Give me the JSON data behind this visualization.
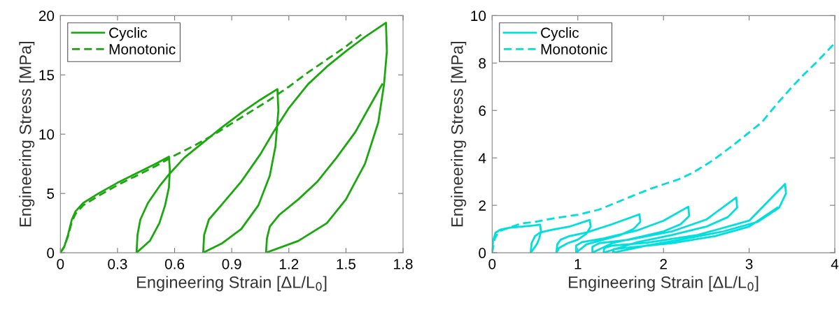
{
  "chart_data": [
    {
      "type": "line",
      "xlabel": "Engineering Strain [ΔL/L$_{0}$]",
      "ylabel": "Engineering Stress [MPa]",
      "xlim": [
        0,
        1.8
      ],
      "ylim": [
        0,
        20
      ],
      "xticks": [
        0,
        0.3,
        0.6,
        0.9,
        1.2,
        1.5,
        1.8
      ],
      "yticks": [
        0,
        5,
        10,
        15,
        20
      ],
      "legend": "top left",
      "grid": false,
      "series": [
        {
          "name": "Cyclic",
          "color": "#1aa80e",
          "line_style": "solid",
          "x": [
            0,
            0.02,
            0.04,
            0.06,
            0.08,
            0.12,
            0.2,
            0.3,
            0.4,
            0.5,
            0.57,
            0.575,
            0.57,
            0.55,
            0.52,
            0.47,
            0.4,
            0.405,
            0.42,
            0.46,
            0.52,
            0.57,
            0.65,
            0.75,
            0.85,
            0.95,
            1.05,
            1.14,
            1.145,
            1.13,
            1.1,
            1.04,
            0.95,
            0.85,
            0.75,
            0.755,
            0.78,
            0.85,
            0.95,
            1.05,
            1.12,
            1.2,
            1.3,
            1.4,
            1.5,
            1.6,
            1.71,
            1.715,
            1.7,
            1.67,
            1.6,
            1.5,
            1.4,
            1.25,
            1.08,
            1.085,
            1.1,
            1.15,
            1.25,
            1.35,
            1.45,
            1.55,
            1.63,
            1.69
          ],
          "values": [
            0,
            0.5,
            1.5,
            2.8,
            3.5,
            4.2,
            5.0,
            5.9,
            6.7,
            7.5,
            8.1,
            7,
            5.5,
            4,
            2.5,
            1,
            0,
            1.5,
            2.8,
            4.2,
            5.6,
            6.6,
            8.0,
            9.3,
            10.6,
            11.8,
            12.9,
            13.8,
            12,
            9,
            6.5,
            4,
            2,
            0.8,
            0,
            1.5,
            2.8,
            4.1,
            6,
            8.3,
            10.2,
            12.2,
            14.2,
            15.7,
            17.0,
            18.2,
            19.4,
            17,
            14.2,
            11,
            7.5,
            4.5,
            2.5,
            1.0,
            0,
            1.2,
            2.2,
            3.2,
            4.5,
            6.0,
            8,
            10.2,
            12.5,
            14.2
          ]
        },
        {
          "name": "Monotonic",
          "color": "#1aa80e",
          "line_style": "dashed",
          "x": [
            0,
            0.02,
            0.04,
            0.06,
            0.08,
            0.12,
            0.2,
            0.3,
            0.4,
            0.5,
            0.6,
            0.7,
            0.8,
            0.9,
            1.0,
            1.1,
            1.2,
            1.3,
            1.4,
            1.5,
            1.58
          ],
          "values": [
            0,
            0.5,
            1.4,
            2.6,
            3.3,
            4.0,
            4.8,
            5.7,
            6.5,
            7.3,
            8.2,
            9.0,
            9.9,
            10.9,
            11.9,
            12.9,
            14.0,
            15.2,
            16.3,
            17.4,
            18.4
          ]
        }
      ]
    },
    {
      "type": "line",
      "xlabel": "Engineering Strain [ΔL/L$_{0}$]",
      "ylabel": "Engineering Stress [MPa]",
      "xlim": [
        0,
        4
      ],
      "ylim": [
        0,
        10
      ],
      "xticks": [
        0,
        1,
        2,
        3,
        4
      ],
      "yticks": [
        0,
        2,
        4,
        6,
        8,
        10
      ],
      "legend": "top left",
      "grid": false,
      "series": [
        {
          "name": "Cyclic",
          "color": "#00dede",
          "line_style": "solid",
          "x": [
            0,
            0.01,
            0.04,
            0.1,
            0.2,
            0.35,
            0.56,
            0.57,
            0.55,
            0.52,
            0.45,
            0.46,
            0.5,
            0.56,
            0.7,
            0.9,
            1.14,
            1.15,
            1.1,
            1.0,
            0.88,
            0.78,
            0.75,
            0.76,
            0.8,
            0.9,
            1.1,
            1.4,
            1.72,
            1.73,
            1.65,
            1.5,
            1.3,
            1.1,
            0.98,
            0.98,
            1.05,
            1.3,
            1.7,
            2.0,
            2.29,
            2.3,
            2.2,
            2.0,
            1.7,
            1.4,
            1.17,
            1.17,
            1.25,
            1.6,
            2.1,
            2.5,
            2.85,
            2.86,
            2.75,
            2.5,
            2.1,
            1.7,
            1.3,
            1.31,
            1.4,
            1.8,
            2.4,
            3.0,
            3.42,
            3.43,
            3.35,
            3.1,
            2.7,
            2.2,
            1.8,
            1.41,
            1.42,
            1.6,
            2.1,
            2.6,
            3.0,
            3.33
          ],
          "values": [
            0,
            0.5,
            0.85,
            0.98,
            1.05,
            1.1,
            1.18,
            0.9,
            0.6,
            0.35,
            0,
            0.4,
            0.7,
            0.85,
            0.97,
            1.1,
            1.38,
            1.1,
            0.8,
            0.55,
            0.4,
            0.2,
            0,
            0.35,
            0.55,
            0.7,
            0.85,
            1.2,
            1.62,
            1.3,
            1.0,
            0.75,
            0.55,
            0.35,
            0,
            0.3,
            0.45,
            0.6,
            0.95,
            1.35,
            1.94,
            1.55,
            1.2,
            0.9,
            0.65,
            0.4,
            0,
            0.25,
            0.4,
            0.55,
            0.9,
            1.4,
            2.33,
            1.9,
            1.5,
            1.1,
            0.75,
            0.45,
            0,
            0.2,
            0.3,
            0.42,
            0.75,
            1.35,
            2.9,
            2.5,
            1.9,
            1.3,
            0.9,
            0.55,
            0.3,
            0,
            0.15,
            0.22,
            0.4,
            0.7,
            1.1,
            1.9
          ]
        },
        {
          "name": "Monotonic",
          "color": "#00dede",
          "line_style": "dashed",
          "x": [
            0,
            0.03,
            0.08,
            0.15,
            0.34,
            0.5,
            0.75,
            1.0,
            1.25,
            1.58,
            1.85,
            2.18,
            2.35,
            2.57,
            2.79,
            2.93,
            3.15,
            3.34,
            3.51,
            3.64,
            3.78,
            3.99
          ],
          "values": [
            0,
            0.6,
            0.9,
            1.0,
            1.23,
            1.3,
            1.47,
            1.6,
            1.82,
            2.31,
            2.7,
            3.1,
            3.39,
            3.88,
            4.47,
            4.87,
            5.51,
            6.34,
            7.03,
            7.52,
            8.01,
            8.8
          ]
        }
      ]
    }
  ]
}
